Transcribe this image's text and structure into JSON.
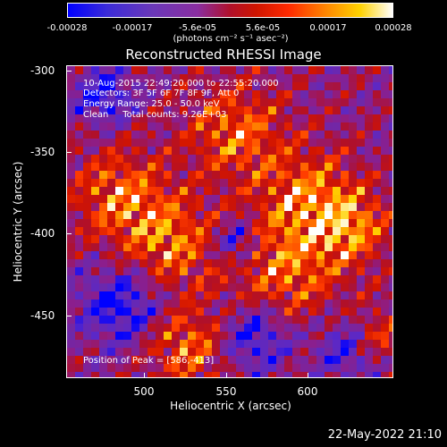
{
  "colorbar": {
    "ticks": [
      "-0.00028",
      "-0.00017",
      "-5.6e-05",
      "5.6e-05",
      "0.00017",
      "0.00028"
    ],
    "units": "(photons cm⁻² s⁻¹ asec⁻²)"
  },
  "title": "Reconstructed RHESSI Image",
  "info": {
    "time_range": "10-Aug-2015 22:49:20.000 to 22:55:20.000",
    "detectors": "Detectors: 3F 5F 6F 7F 8F 9F, Att 0",
    "energy": "Energy Range: 25.0 - 50.0 keV",
    "clean": "Clean     Total counts: 9.26E+03"
  },
  "peak": "Position of Peak = [586,-413]",
  "axes": {
    "xlabel": "Heliocentric X (arcsec)",
    "ylabel": "Heliocentric Y (arcsec)",
    "xticks": [
      "500",
      "550",
      "600"
    ],
    "yticks": [
      "-300",
      "-350",
      "-400",
      "-450"
    ]
  },
  "footer": "22-May-2022 21:10"
}
